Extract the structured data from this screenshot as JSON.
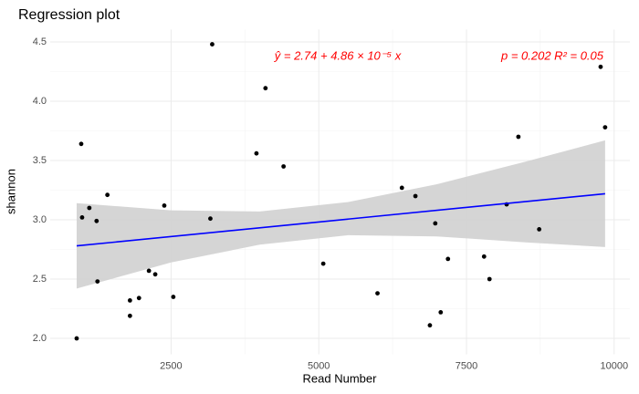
{
  "chart_data": {
    "type": "scatter",
    "title": "Regression plot",
    "x_label": "Read Number",
    "y_label": "shannon",
    "equation": "ŷ = 2.74 + 4.86 × 10⁻⁵ x",
    "stats": "p =  0.202  R² =  0.05",
    "xlim": [
      454,
      10266
    ],
    "ylim": [
      1.8655,
      4.6045
    ],
    "xticks": [
      2500,
      5000,
      7500,
      10000
    ],
    "yticks": [
      {
        "value": 2.0,
        "label": "2.0"
      },
      2.5,
      {
        "value": 3.0,
        "label": "3.0"
      },
      3.5,
      {
        "value": 4.0,
        "label": "4.0"
      },
      4.5
    ],
    "grid": true,
    "point_color": "#000000",
    "x": [
      902,
      979,
      994,
      1116,
      1239,
      1254,
      1422,
      1804,
      1804,
      1957,
      2125,
      2232,
      2385,
      2538,
      3165,
      3196,
      3945,
      4098,
      4404,
      5076,
      5994,
      6407,
      6636,
      6881,
      6972,
      7064,
      7187,
      7798,
      7890,
      8180,
      8379,
      8731,
      9771,
      9847
    ],
    "values": [
      2.0,
      3.64,
      3.02,
      3.1,
      2.99,
      2.48,
      3.21,
      2.32,
      2.19,
      2.34,
      2.57,
      2.54,
      3.12,
      2.35,
      3.01,
      4.48,
      3.56,
      4.11,
      3.45,
      2.63,
      2.38,
      3.27,
      3.2,
      2.11,
      2.97,
      2.22,
      2.67,
      2.69,
      2.5,
      3.13,
      3.7,
      2.92,
      4.29,
      3.78
    ],
    "fit": {
      "color": "#0000ff",
      "x": [
        902,
        9847
      ],
      "values": [
        2.78,
        3.22
      ]
    },
    "band": {
      "color": "#d3d3d3",
      "x": [
        902,
        2500,
        4000,
        5500,
        7000,
        8500,
        9847
      ],
      "lower": [
        2.42,
        2.64,
        2.79,
        2.87,
        2.86,
        2.81,
        2.77
      ],
      "upper": [
        3.14,
        3.08,
        3.07,
        3.15,
        3.3,
        3.49,
        3.67
      ]
    },
    "annotation_color": "#ff0000"
  }
}
